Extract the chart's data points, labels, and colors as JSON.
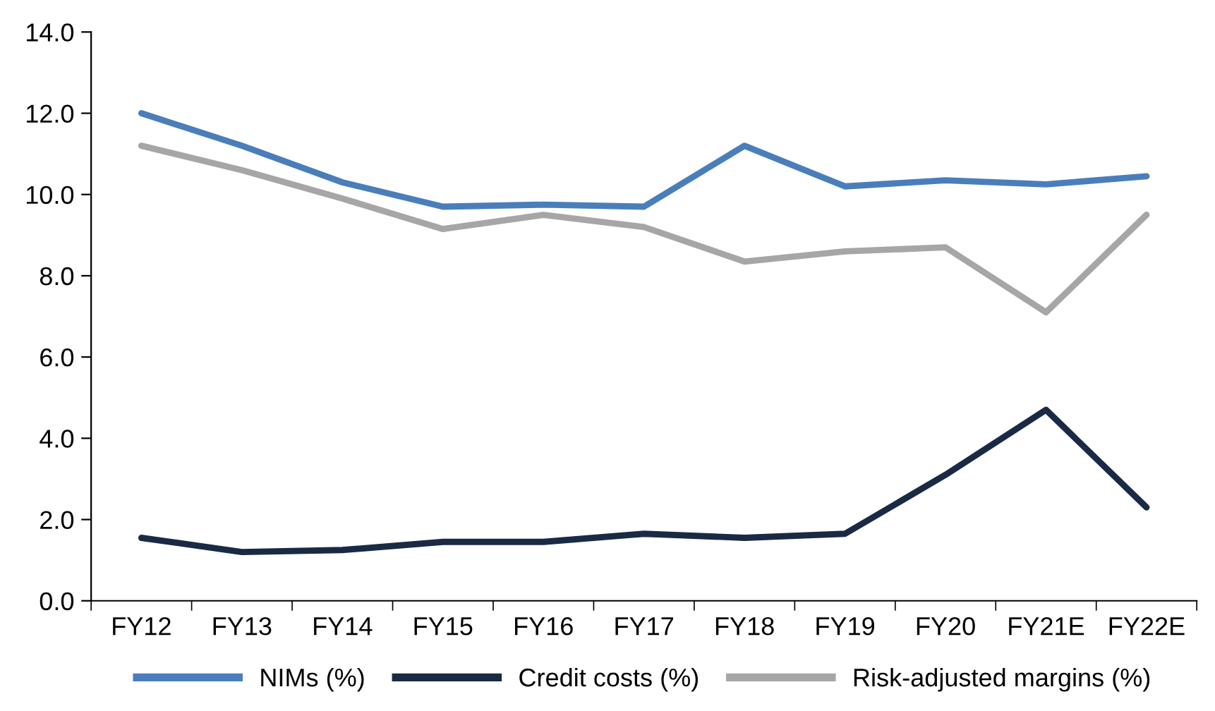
{
  "chart_data": {
    "type": "line",
    "categories": [
      "FY12",
      "FY13",
      "FY14",
      "FY15",
      "FY16",
      "FY17",
      "FY18",
      "FY19",
      "FY20",
      "FY21E",
      "FY22E"
    ],
    "series": [
      {
        "name": "NIMs (%)",
        "color": "#4a7ebb",
        "values": [
          12.0,
          11.2,
          10.3,
          9.7,
          9.75,
          9.7,
          11.2,
          10.2,
          10.35,
          10.25,
          10.45
        ]
      },
      {
        "name": "Credit costs (%)",
        "color": "#1a2a44",
        "values": [
          1.55,
          1.2,
          1.25,
          1.45,
          1.45,
          1.65,
          1.55,
          1.65,
          3.1,
          4.7,
          2.3
        ]
      },
      {
        "name": "Risk-adjusted margins (%)",
        "color": "#a6a6a6",
        "values": [
          11.2,
          10.6,
          9.9,
          9.15,
          9.5,
          9.2,
          8.35,
          8.6,
          8.7,
          7.1,
          9.5
        ]
      }
    ],
    "ylim": [
      0,
      14
    ],
    "yticks": [
      {
        "value": 0,
        "label": "0.0"
      },
      {
        "value": 2,
        "label": "2.0"
      },
      {
        "value": 4,
        "label": "4.0"
      },
      {
        "value": 6,
        "label": "6.0"
      },
      {
        "value": 8,
        "label": "8.0"
      },
      {
        "value": 10,
        "label": "10.0"
      },
      {
        "value": 12,
        "label": "12.0"
      },
      {
        "value": 14,
        "label": "14.0"
      }
    ],
    "grid": false,
    "legend": "bottom",
    "marker": "none",
    "line_style": "solid"
  }
}
